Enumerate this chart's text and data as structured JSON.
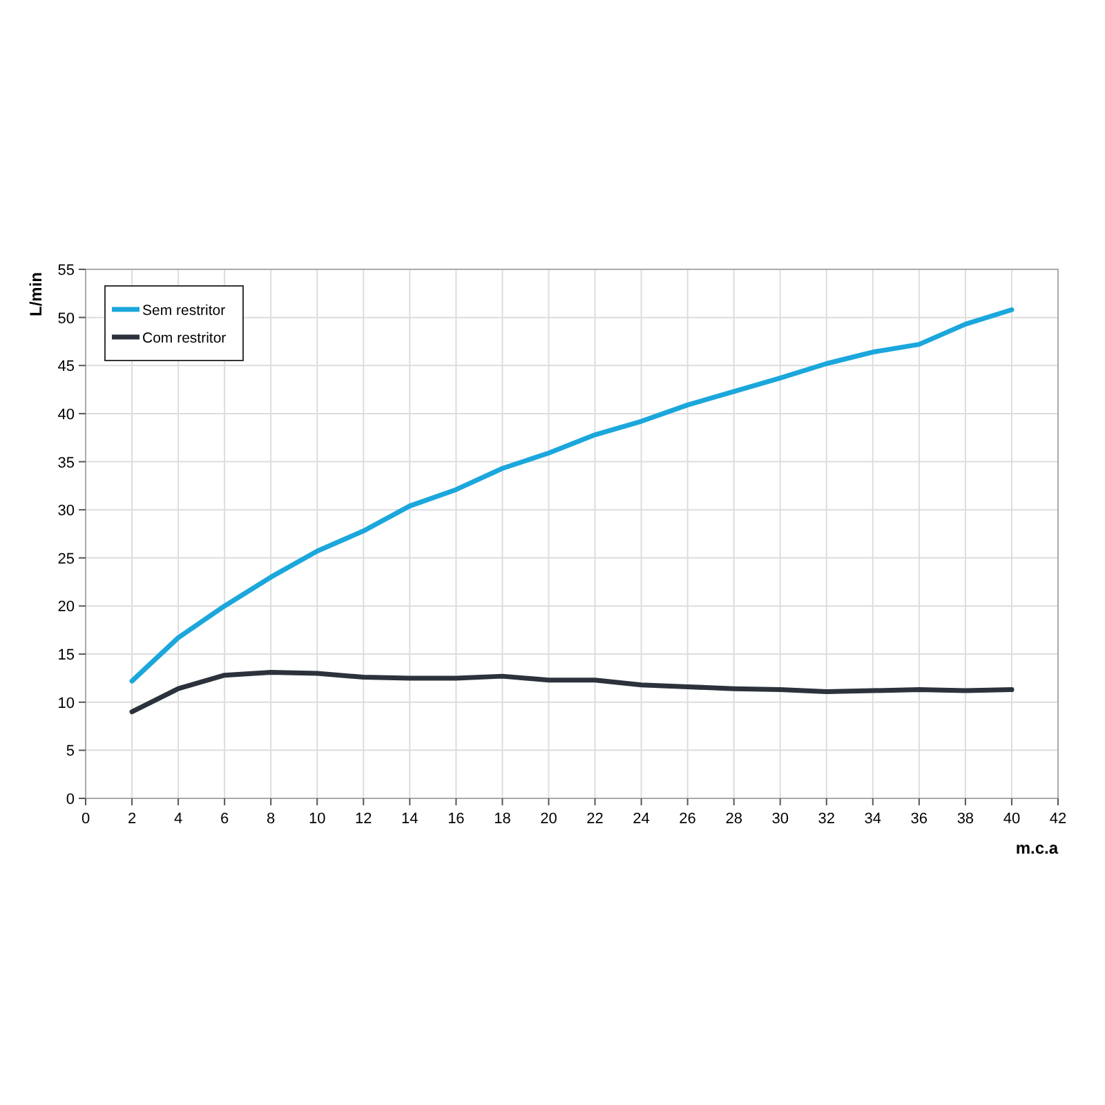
{
  "chart_data": {
    "type": "line",
    "xlabel": "m.c.a",
    "ylabel": "L/min",
    "x": [
      2,
      4,
      6,
      8,
      10,
      12,
      14,
      16,
      18,
      20,
      22,
      24,
      26,
      28,
      30,
      32,
      34,
      36,
      38,
      40
    ],
    "series": [
      {
        "name": "Sem restritor",
        "color": "#1ba7dc",
        "values": [
          12.2,
          16.7,
          20.0,
          23.0,
          25.7,
          27.8,
          30.4,
          32.1,
          34.3,
          35.9,
          37.8,
          39.2,
          40.9,
          42.3,
          43.7,
          45.2,
          46.4,
          47.2,
          49.3,
          50.8
        ]
      },
      {
        "name": "Com restritor",
        "color": "#2b323b",
        "values": [
          9.0,
          11.4,
          12.8,
          13.1,
          13.0,
          12.6,
          12.5,
          12.5,
          12.7,
          12.3,
          12.3,
          11.8,
          11.6,
          11.4,
          11.3,
          11.1,
          11.2,
          11.3,
          11.2,
          11.3
        ]
      }
    ],
    "xlim": [
      0,
      42
    ],
    "xticks": [
      0,
      2,
      4,
      6,
      8,
      10,
      12,
      14,
      16,
      18,
      20,
      22,
      24,
      26,
      28,
      30,
      32,
      34,
      36,
      38,
      40,
      42
    ],
    "ylim": [
      0,
      55
    ],
    "yticks": [
      0,
      5,
      10,
      15,
      20,
      25,
      30,
      35,
      40,
      45,
      50,
      55
    ],
    "grid": true,
    "legend": "top left",
    "marker": "none",
    "line_style": "solid"
  }
}
